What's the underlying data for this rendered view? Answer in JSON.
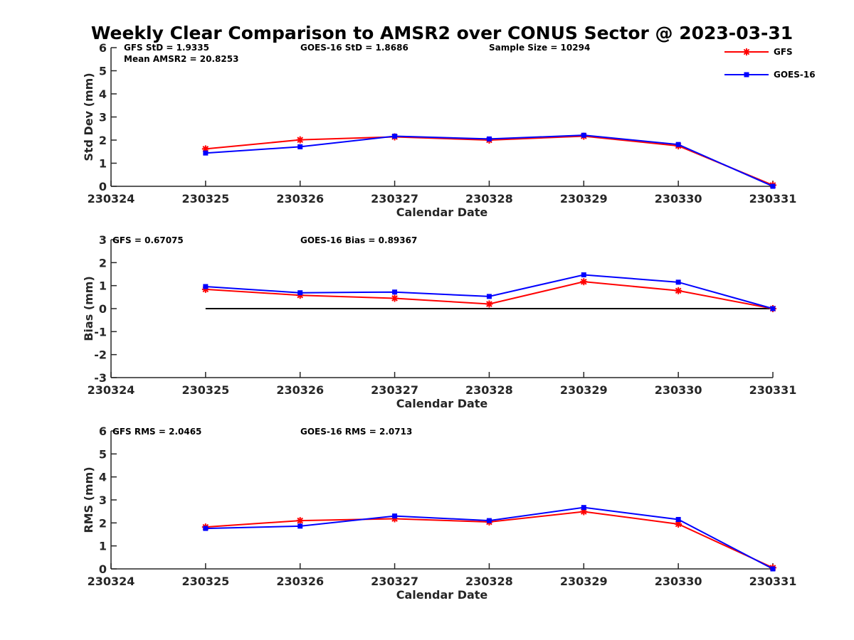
{
  "figure": {
    "title": "Weekly Clear Comparison to AMSR2 over CONUS Sector @ 2023-03-31"
  },
  "legend": {
    "position": "top-right",
    "entries": [
      {
        "label": "GFS",
        "color": "#ff0000",
        "marker": "asterisk"
      },
      {
        "label": "GOES-16",
        "color": "#0000ff",
        "marker": "square"
      }
    ]
  },
  "chart_data": [
    {
      "type": "line",
      "xlabel": "Calendar Date",
      "ylabel": "Std Dev (mm)",
      "categories": [
        "230324",
        "230325",
        "230326",
        "230327",
        "230328",
        "230329",
        "230330",
        "230331"
      ],
      "ylim": [
        0,
        6
      ],
      "yticks": [
        "0",
        "1",
        "2",
        "3",
        "4",
        "5",
        "6"
      ],
      "grid": false,
      "zero_line": false,
      "annotations": [
        {
          "key": "gfs",
          "text": "GFS StD = 1.9335"
        },
        {
          "key": "goes",
          "text": "GOES-16 StD = 1.8686"
        },
        {
          "key": "sample",
          "text": "Sample Size = 10294"
        },
        {
          "key": "mean",
          "text": "Mean AMSR2 = 20.8253"
        }
      ],
      "series": [
        {
          "name": "GFS",
          "color": "#ff0000",
          "marker": "asterisk",
          "x": [
            "230325",
            "230326",
            "230327",
            "230328",
            "230329",
            "230330",
            "230331"
          ],
          "values": [
            1.62,
            2.01,
            2.14,
            2.0,
            2.17,
            1.75,
            0.05
          ]
        },
        {
          "name": "GOES-16",
          "color": "#0000ff",
          "marker": "square",
          "x": [
            "230325",
            "230326",
            "230327",
            "230328",
            "230329",
            "230330",
            "230331"
          ],
          "values": [
            1.44,
            1.71,
            2.17,
            2.05,
            2.21,
            1.81,
            0.0
          ]
        }
      ]
    },
    {
      "type": "line",
      "xlabel": "Calendar Date",
      "ylabel": "Bias (mm)",
      "categories": [
        "230324",
        "230325",
        "230326",
        "230327",
        "230328",
        "230329",
        "230330",
        "230331"
      ],
      "ylim": [
        -3,
        3
      ],
      "yticks": [
        "-3",
        "-2",
        "-1",
        "0",
        "1",
        "2",
        "3"
      ],
      "grid": false,
      "zero_line": true,
      "annotations": [
        {
          "key": "gfs",
          "text": "GFS = 0.67075"
        },
        {
          "key": "goes",
          "text": "GOES-16 Bias  = 0.89367"
        }
      ],
      "series": [
        {
          "name": "GFS",
          "color": "#ff0000",
          "marker": "asterisk",
          "x": [
            "230325",
            "230326",
            "230327",
            "230328",
            "230329",
            "230330",
            "230331"
          ],
          "values": [
            0.84,
            0.58,
            0.45,
            0.2,
            1.17,
            0.78,
            0.0
          ]
        },
        {
          "name": "GOES-16",
          "color": "#0000ff",
          "marker": "square",
          "x": [
            "230325",
            "230326",
            "230327",
            "230328",
            "230329",
            "230330",
            "230331"
          ],
          "values": [
            0.96,
            0.69,
            0.72,
            0.53,
            1.47,
            1.15,
            0.0
          ]
        }
      ]
    },
    {
      "type": "line",
      "xlabel": "Calendar Date",
      "ylabel": "RMS (mm)",
      "categories": [
        "230324",
        "230325",
        "230326",
        "230327",
        "230328",
        "230329",
        "230330",
        "230331"
      ],
      "ylim": [
        0,
        6
      ],
      "yticks": [
        "0",
        "1",
        "2",
        "3",
        "4",
        "5",
        "6"
      ],
      "grid": false,
      "zero_line": false,
      "annotations": [
        {
          "key": "gfs",
          "text": "GFS RMS = 2.0465"
        },
        {
          "key": "goes",
          "text": "GOES-16 RMS = 2.0713"
        }
      ],
      "series": [
        {
          "name": "GFS",
          "color": "#ff0000",
          "marker": "asterisk",
          "x": [
            "230325",
            "230326",
            "230327",
            "230328",
            "230329",
            "230330",
            "230331"
          ],
          "values": [
            1.82,
            2.1,
            2.18,
            2.04,
            2.49,
            1.95,
            0.05
          ]
        },
        {
          "name": "GOES-16",
          "color": "#0000ff",
          "marker": "square",
          "x": [
            "230325",
            "230326",
            "230327",
            "230328",
            "230329",
            "230330",
            "230331"
          ],
          "values": [
            1.76,
            1.86,
            2.3,
            2.1,
            2.67,
            2.15,
            0.0
          ]
        }
      ]
    }
  ]
}
